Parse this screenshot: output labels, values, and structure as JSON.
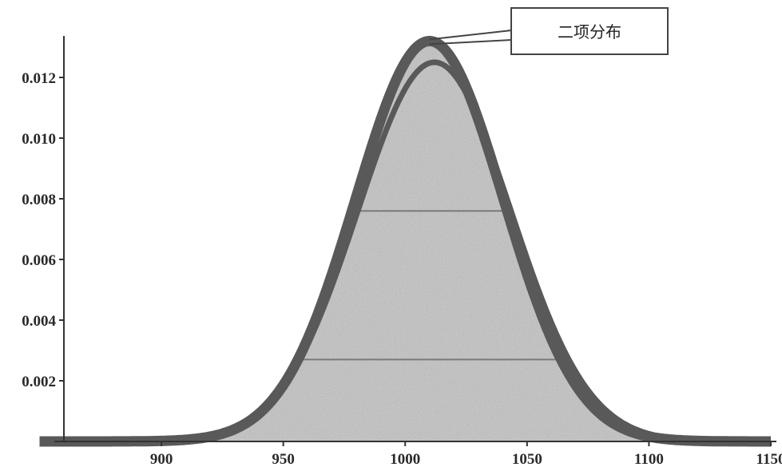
{
  "chart_data": {
    "type": "area",
    "xlim": [
      860,
      1150
    ],
    "ylim": [
      0,
      0.0135
    ],
    "x_ticks": [
      900,
      950,
      1000,
      1050,
      1100,
      1150
    ],
    "x_tick_labels": [
      "900",
      "950",
      "1000",
      "1050",
      "1100",
      "1150"
    ],
    "y_ticks": [
      0.002,
      0.004,
      0.006,
      0.008,
      0.01,
      0.012
    ],
    "y_tick_labels": [
      "0.002",
      "0.004",
      "0.006",
      "0.008",
      "0.010",
      "0.012"
    ],
    "grid": false,
    "series": [
      {
        "name": "二项分布",
        "distribution": "binomial",
        "mean": 1010,
        "sd": 30.3,
        "peak": 0.0132
      },
      {
        "distribution": "normal",
        "mean": 1012,
        "sd": 31.5,
        "peak": 0.0125
      }
    ],
    "annotation": {
      "text": "二项分布",
      "points_to_x": 1010,
      "points_to_y": 0.0132
    },
    "colors": {
      "curve": "#595959",
      "fill": "#b8b8b8",
      "axis": "#333333",
      "callout_border": "#444444"
    }
  }
}
